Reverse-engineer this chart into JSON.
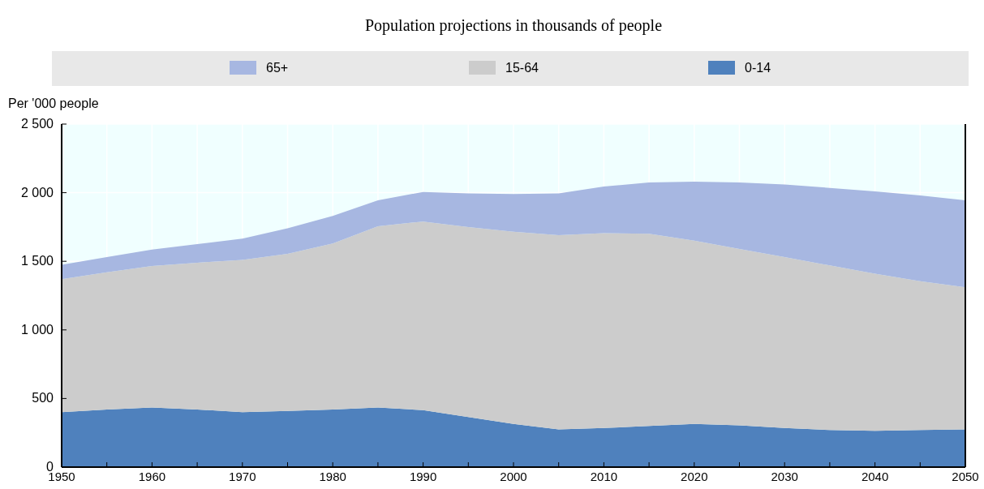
{
  "chart_data": {
    "type": "area",
    "title": "Population projections in thousands of people",
    "ylabel": "Per '000 people",
    "stacked": true,
    "legend": "top",
    "grid": true,
    "x": [
      1950,
      1955,
      1960,
      1965,
      1970,
      1975,
      1980,
      1985,
      1990,
      1995,
      2000,
      2005,
      2010,
      2015,
      2020,
      2025,
      2030,
      2035,
      2040,
      2045,
      2050
    ],
    "xlim": [
      1950,
      2050
    ],
    "xticks": [
      1950,
      {
        "value": 1955,
        "label": null
      },
      1960,
      {
        "value": 1965,
        "label": null
      },
      1970,
      {
        "value": 1975,
        "label": null
      },
      1980,
      {
        "value": 1985,
        "label": null
      },
      1990,
      {
        "value": 1995,
        "label": null
      },
      2000,
      {
        "value": 2005,
        "label": null
      },
      2010,
      {
        "value": 2015,
        "label": null
      },
      2020,
      {
        "value": 2025,
        "label": null
      },
      2030,
      {
        "value": 2035,
        "label": null
      },
      2040,
      {
        "value": 2045,
        "label": null
      },
      2050
    ],
    "ylim": [
      0,
      2500
    ],
    "yticks": [
      0,
      500,
      {
        "value": 1000,
        "label": "1 000"
      },
      {
        "value": 1500,
        "label": "1 500"
      },
      {
        "value": 2000,
        "label": "2 000"
      },
      {
        "value": 2500,
        "label": "2 500"
      }
    ],
    "series": [
      {
        "name": "0-14",
        "color": "#4f81bd",
        "values": [
          400,
          420,
          435,
          420,
          400,
          410,
          420,
          435,
          415,
          365,
          315,
          275,
          285,
          300,
          315,
          305,
          285,
          270,
          265,
          270,
          275
        ]
      },
      {
        "name": "15-64",
        "color": "#cccccc",
        "values": [
          970,
          1000,
          1030,
          1070,
          1110,
          1145,
          1210,
          1320,
          1375,
          1385,
          1400,
          1415,
          1420,
          1400,
          1335,
          1285,
          1245,
          1200,
          1145,
          1085,
          1035
        ]
      },
      {
        "name": "65+",
        "color": "#a7b7e1",
        "values": [
          105,
          110,
          120,
          135,
          155,
          185,
          200,
          190,
          215,
          245,
          275,
          305,
          340,
          375,
          430,
          485,
          530,
          565,
          600,
          625,
          635
        ]
      }
    ]
  }
}
